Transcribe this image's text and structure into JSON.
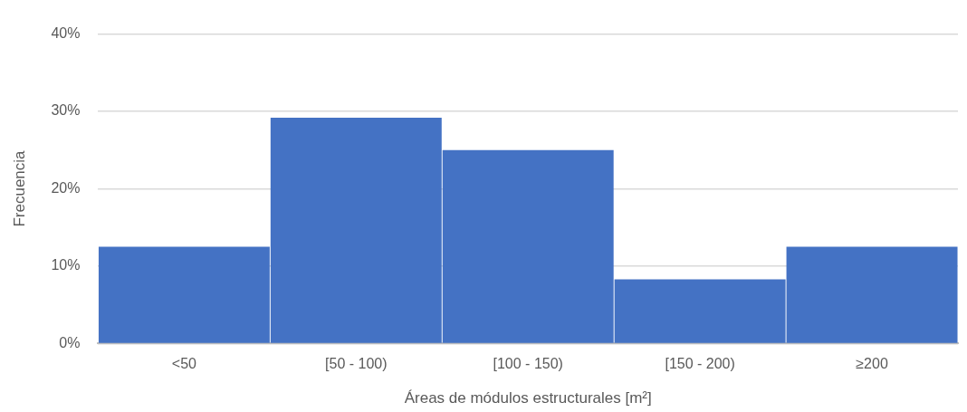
{
  "chart_data": {
    "type": "bar",
    "xlabel": "Áreas de módulos estructurales [m²]",
    "ylabel": "Frecuencia",
    "categories": [
      "<50",
      "[50 - 100)",
      "[100 - 150)",
      "[150 - 200)",
      "≥200"
    ],
    "values": [
      12.5,
      29.2,
      25,
      8.3,
      12.5
    ],
    "color": "#4472c4",
    "ylim": [
      0,
      40
    ],
    "yticks": [
      {
        "value": 0,
        "label": "0%"
      },
      {
        "value": 10,
        "label": "10%"
      },
      {
        "value": 20,
        "label": "20%"
      },
      {
        "value": 30,
        "label": "30%"
      },
      {
        "value": 40,
        "label": "40%"
      }
    ],
    "grid": "y"
  }
}
